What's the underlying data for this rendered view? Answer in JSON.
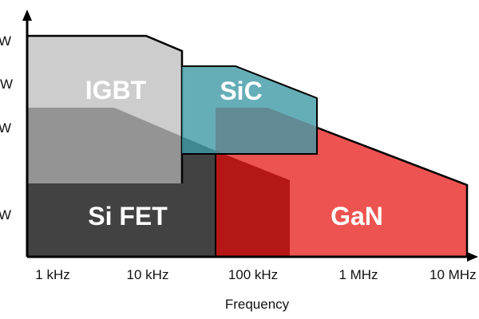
{
  "y_axis": {
    "tick_labels": [
      "W",
      "kW",
      "W",
      "W"
    ]
  },
  "x_axis": {
    "label": "Frequency",
    "tick_labels": [
      "1 kHz",
      "10 kHz",
      "100 kHz",
      "1 MHz",
      "10 MHz"
    ]
  },
  "regions": {
    "igbt": {
      "label": "IGBT",
      "color": "#a3a3a3"
    },
    "sic": {
      "label": "SiC",
      "color": "#3f9aa6"
    },
    "si_fet": {
      "label": "Si FET",
      "color": "#424242"
    },
    "gan": {
      "label": "GaN",
      "color": "#ec4a47",
      "overlap_color": "#b51717"
    }
  }
}
